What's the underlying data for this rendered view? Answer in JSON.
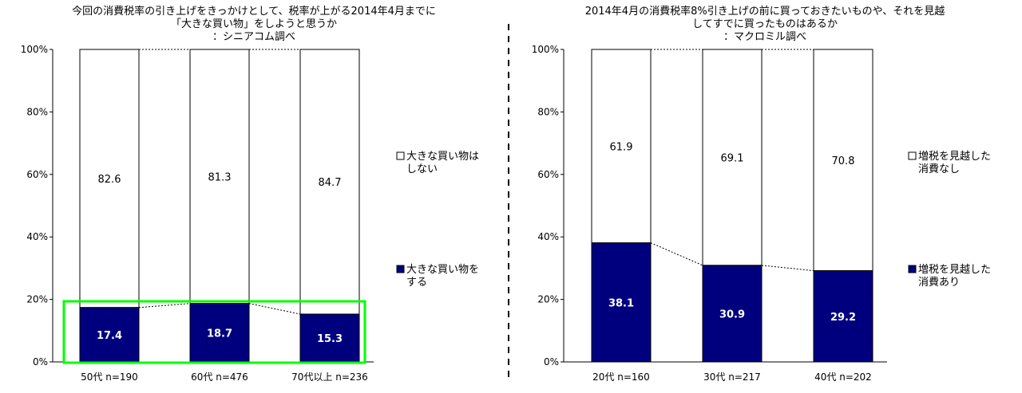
{
  "colors": {
    "navy": "#00007f",
    "highlight": "#00ff00",
    "axis": "#000000"
  },
  "chart_data": [
    {
      "type": "bar",
      "stacked": true,
      "title_lines": [
        "今回の消費税率の引き上げをきっかけとして、税率が上がる2014年4月までに",
        "「大きな買い物」をしようと思うか",
        "：シニアコム調べ"
      ],
      "yticks": [
        "0%",
        "20%",
        "40%",
        "60%",
        "80%",
        "100%"
      ],
      "ylim": [
        0,
        100
      ],
      "categories": [
        "50代 n=190",
        "60代 n=476",
        "70代以上 n=236"
      ],
      "series": [
        {
          "name": "大きな買い物をする",
          "name_lines": [
            "大きな買い物を",
            "する"
          ],
          "values": [
            17.4,
            18.7,
            15.3
          ],
          "labels": [
            "17.4",
            "18.7",
            "15.3"
          ]
        },
        {
          "name": "大きな買い物はしない",
          "name_lines": [
            "大きな買い物は",
            "しない"
          ],
          "values": [
            82.6,
            81.3,
            84.7
          ],
          "labels": [
            "82.6",
            "81.3",
            "84.7"
          ]
        }
      ],
      "legend_position": "right",
      "highlight_box": true
    },
    {
      "type": "bar",
      "stacked": true,
      "title_lines": [
        "2014年4月の消費税率8%引き上げの前に買っておきたいものや、それを見越",
        "してすでに買ったものはあるか",
        "：マクロミル調べ"
      ],
      "yticks": [
        "0%",
        "20%",
        "40%",
        "60%",
        "80%",
        "100%"
      ],
      "ylim": [
        0,
        100
      ],
      "categories": [
        "20代 n=160",
        "30代 n=217",
        "40代 n=202"
      ],
      "series": [
        {
          "name": "増税を見越した消費あり",
          "name_lines": [
            "増税を見越した",
            "消費あり"
          ],
          "values": [
            38.1,
            30.9,
            29.2
          ],
          "labels": [
            "38.1",
            "30.9",
            "29.2"
          ]
        },
        {
          "name": "増税を見越した消費なし",
          "name_lines": [
            "増税を見越した",
            "消費なし"
          ],
          "values": [
            61.9,
            69.1,
            70.8
          ],
          "labels": [
            "61.9",
            "69.1",
            "70.8"
          ]
        }
      ],
      "legend_position": "right",
      "highlight_box": false
    }
  ]
}
